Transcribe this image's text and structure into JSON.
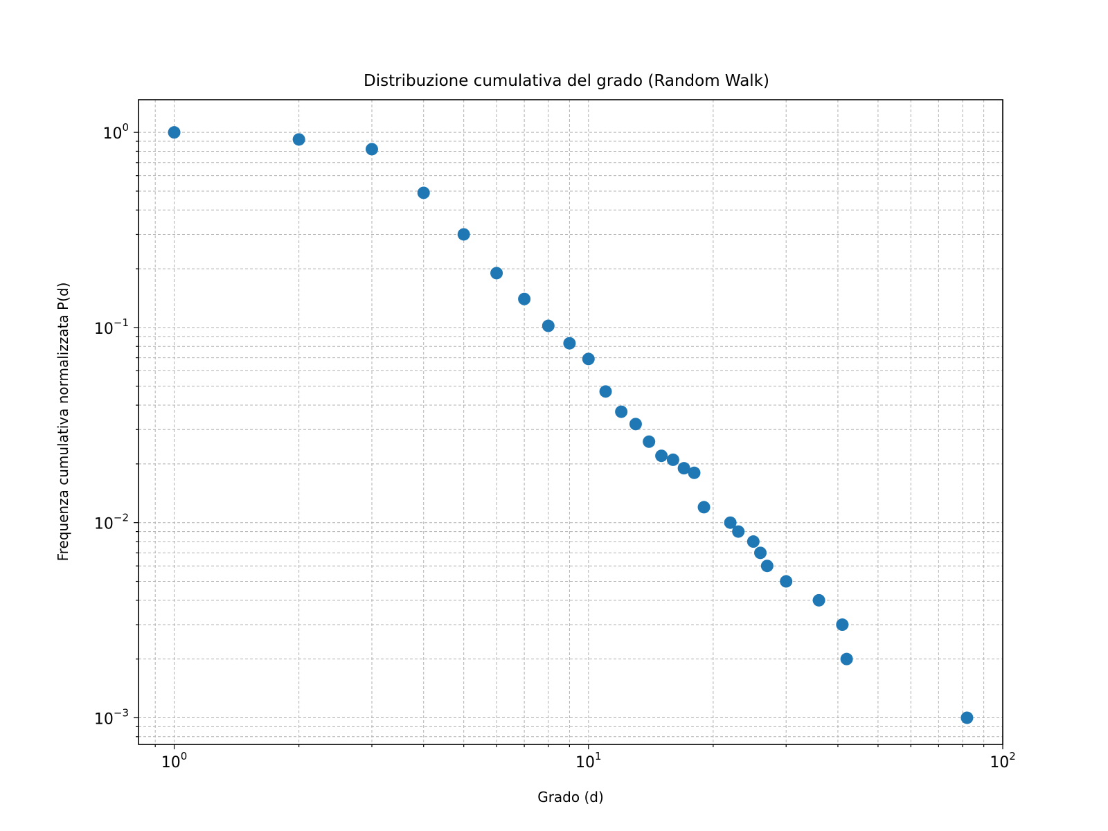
{
  "chart_data": {
    "type": "scatter",
    "title": "Distribuzione cumulativa del grado (Random Walk)",
    "xlabel": "Grado (d)",
    "ylabel": "Frequenza cumulativa normalizzata P(d)",
    "xscale": "log",
    "yscale": "log",
    "xlim": [
      0.82,
      100
    ],
    "ylim": [
      0.00073,
      1.47
    ],
    "grid": true,
    "grid_style": "dashed, major and minor",
    "x_ticks": [
      {
        "label": "10",
        "exp": "0"
      },
      {
        "label": "10",
        "exp": "1"
      },
      {
        "label": "10",
        "exp": "2"
      }
    ],
    "y_ticks": [
      {
        "label": "10",
        "exp": "0"
      },
      {
        "label": "10",
        "exp": "−1"
      },
      {
        "label": "10",
        "exp": "−2"
      },
      {
        "label": "10",
        "exp": "−3"
      }
    ],
    "marker_color": "#1f77b4",
    "series": [
      {
        "points": [
          [
            1,
            1.0
          ],
          [
            2,
            0.92
          ],
          [
            3,
            0.82
          ],
          [
            4,
            0.49
          ],
          [
            5,
            0.3
          ],
          [
            6,
            0.19
          ],
          [
            7,
            0.14
          ],
          [
            8,
            0.102
          ],
          [
            9,
            0.083
          ],
          [
            10,
            0.069
          ],
          [
            11,
            0.047
          ],
          [
            12,
            0.037
          ],
          [
            13,
            0.032
          ],
          [
            14,
            0.026
          ],
          [
            15,
            0.022
          ],
          [
            16,
            0.021
          ],
          [
            17,
            0.019
          ],
          [
            18,
            0.018
          ],
          [
            19,
            0.012
          ],
          [
            22,
            0.01
          ],
          [
            23,
            0.009
          ],
          [
            25,
            0.008
          ],
          [
            26,
            0.007
          ],
          [
            27,
            0.006
          ],
          [
            30,
            0.005
          ],
          [
            36,
            0.004
          ],
          [
            41,
            0.003
          ],
          [
            42,
            0.002
          ],
          [
            82,
            0.001
          ]
        ]
      }
    ]
  }
}
